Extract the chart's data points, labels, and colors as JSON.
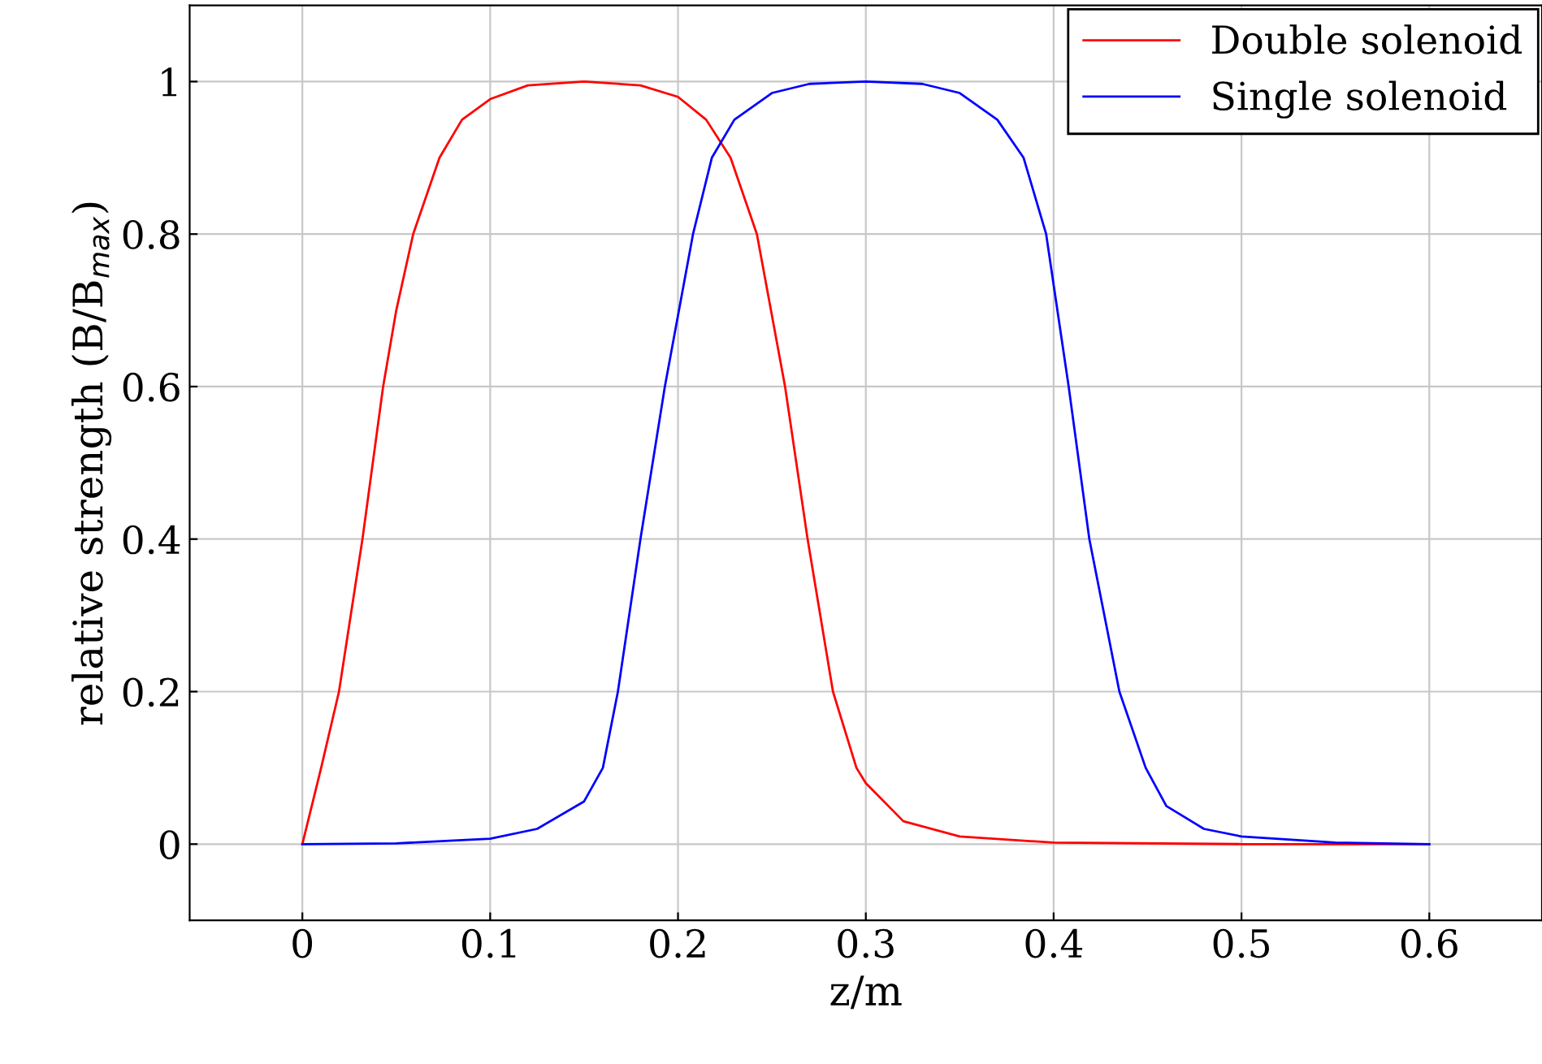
{
  "chart_data": {
    "type": "line",
    "xlabel": "z/m",
    "ylabel": "relative strength (B/B$_{max}$)",
    "xlim": [
      -0.06,
      0.66
    ],
    "ylim": [
      -0.1,
      1.1
    ],
    "xticks": [
      0,
      0.1,
      0.2,
      0.3,
      0.4,
      0.5,
      0.6
    ],
    "yticks": [
      0,
      0.2,
      0.4,
      0.6,
      0.8,
      1
    ],
    "grid": true,
    "legend": "top right",
    "marker": "none",
    "line_style": "solid",
    "series": [
      {
        "name": "Double solenoid",
        "color": "#ff0000",
        "x": [
          0,
          0.01,
          0.0195,
          0.032,
          0.043,
          0.05,
          0.059,
          0.073,
          0.085,
          0.1,
          0.12,
          0.15,
          0.18,
          0.2,
          0.215,
          0.228,
          0.242,
          0.257,
          0.269,
          0.2825,
          0.295,
          0.3,
          0.32,
          0.35,
          0.4,
          0.5,
          0.6
        ],
        "values": [
          0,
          0.1,
          0.2,
          0.4,
          0.6,
          0.7,
          0.8,
          0.9,
          0.95,
          0.977,
          0.995,
          1,
          0.995,
          0.98,
          0.95,
          0.9,
          0.8,
          0.6,
          0.4,
          0.2,
          0.1,
          0.08,
          0.03,
          0.01,
          0.002,
          0,
          0
        ]
      },
      {
        "name": "Single solenoid",
        "color": "#0000ff",
        "x": [
          0,
          0.05,
          0.1,
          0.125,
          0.15,
          0.16,
          0.168,
          0.18,
          0.193,
          0.208,
          0.218,
          0.23,
          0.25,
          0.27,
          0.3,
          0.33,
          0.35,
          0.37,
          0.384,
          0.396,
          0.408,
          0.419,
          0.435,
          0.449,
          0.46,
          0.48,
          0.5,
          0.55,
          0.6
        ],
        "values": [
          0,
          0.001,
          0.007,
          0.02,
          0.056,
          0.1,
          0.2,
          0.4,
          0.6,
          0.8,
          0.9,
          0.95,
          0.985,
          0.997,
          1,
          0.997,
          0.985,
          0.95,
          0.9,
          0.8,
          0.6,
          0.4,
          0.2,
          0.1,
          0.05,
          0.02,
          0.01,
          0.002,
          0
        ]
      }
    ]
  }
}
